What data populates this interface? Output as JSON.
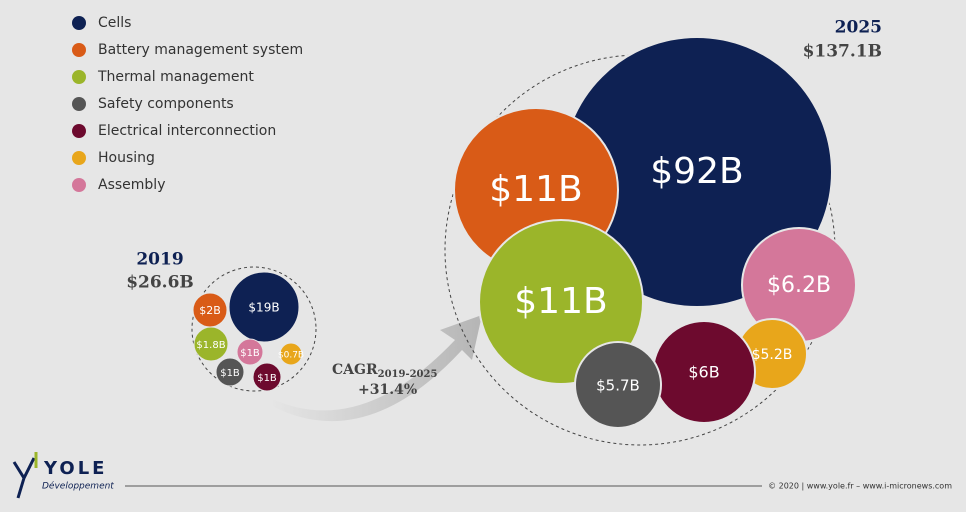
{
  "chart_data": {
    "type": "packed-bubble",
    "groups": [
      "2019",
      "2025"
    ],
    "totals": [
      26.6,
      137.1
    ],
    "total_labels": [
      "$26.6B",
      "$137.1B"
    ],
    "series": [
      {
        "name": "Cells",
        "color": "#0e2153",
        "values": [
          19,
          92
        ],
        "value_labels": [
          "$19B",
          "$92B"
        ]
      },
      {
        "name": "Battery management system",
        "color": "#d95b17",
        "values": [
          2,
          11
        ],
        "value_labels": [
          "$2B",
          "$11B"
        ]
      },
      {
        "name": "Thermal management",
        "color": "#9bb52a",
        "values": [
          1.8,
          11
        ],
        "value_labels": [
          "$1.8B",
          "$11B"
        ]
      },
      {
        "name": "Safety components",
        "color": "#555555",
        "values": [
          1,
          5.7
        ],
        "value_labels": [
          "$1B",
          "$5.7B"
        ]
      },
      {
        "name": "Electrical interconnection",
        "color": "#6d0a2e",
        "values": [
          1,
          6
        ],
        "value_labels": [
          "$1B",
          "$6B"
        ]
      },
      {
        "name": "Housing",
        "color": "#e8a61b",
        "values": [
          0.7,
          5.2
        ],
        "value_labels": [
          "$0.7B",
          "$5.2B"
        ]
      },
      {
        "name": "Assembly",
        "color": "#d4779a",
        "values": [
          1,
          6.2
        ],
        "value_labels": [
          "$1B",
          "$6.2B"
        ]
      }
    ],
    "cagr": {
      "label": "CAGR",
      "period": "2019-2025",
      "value": 31.4,
      "value_label": "+31.4%"
    }
  },
  "footer": {
    "logo": "YOLE",
    "logo_sub": "Développement",
    "copyright": "© 2020 | www.yole.fr – www.i-micronews.com"
  }
}
